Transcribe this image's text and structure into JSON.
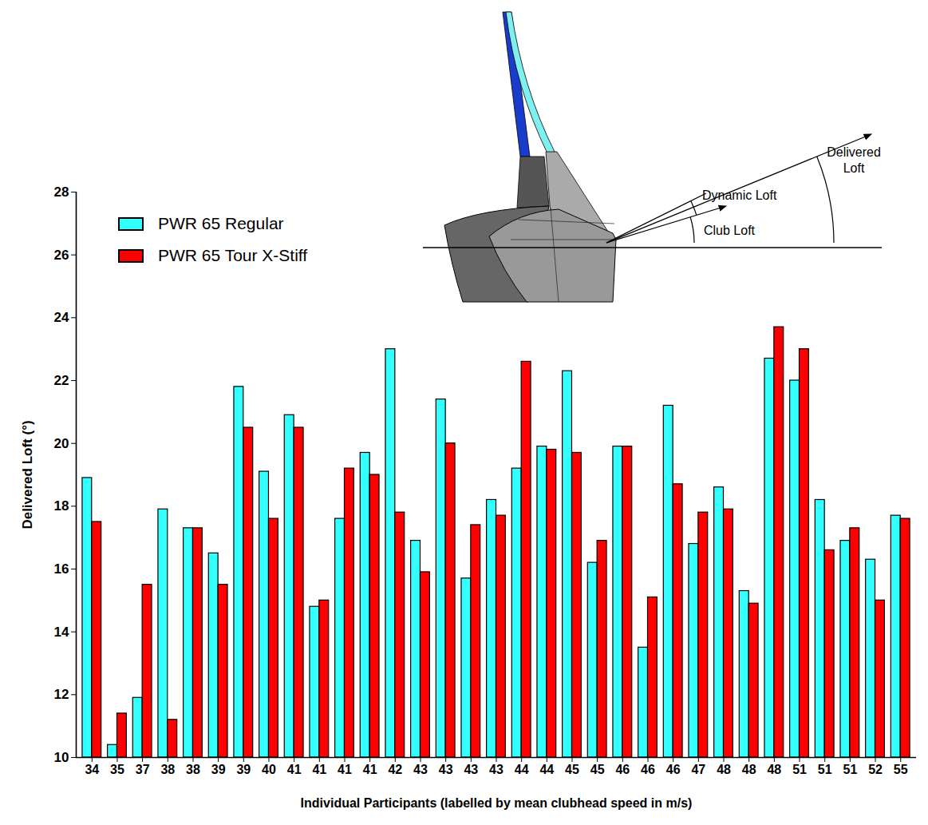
{
  "chart_data": {
    "type": "bar",
    "x_label": "Individual Participants (labelled by mean clubhead speed in m/s)",
    "y_label": "Delivered Loft (°)",
    "annotations": [
      "Delivered Loft",
      "Dynamic Loft",
      "Club Loft"
    ],
    "categories": [
      "34",
      "35",
      "37",
      "38",
      "38",
      "39",
      "39",
      "40",
      "41",
      "41",
      "41",
      "41",
      "42",
      "43",
      "43",
      "43",
      "43",
      "44",
      "44",
      "45",
      "45",
      "46",
      "46",
      "46",
      "47",
      "48",
      "48",
      "48",
      "51",
      "51",
      "51",
      "52",
      "55"
    ],
    "series": [
      {
        "name": "PWR 65 Regular",
        "color": "#33ffff",
        "values": [
          18.9,
          10.4,
          11.9,
          17.9,
          17.3,
          16.5,
          21.8,
          19.1,
          20.9,
          14.8,
          17.6,
          19.7,
          23.0,
          16.9,
          21.4,
          15.7,
          18.2,
          19.2,
          19.9,
          22.3,
          16.2,
          19.9,
          13.5,
          21.2,
          16.8,
          18.6,
          15.3,
          22.7,
          22.0,
          18.2,
          16.9,
          16.3,
          17.7
        ]
      },
      {
        "name": "PWR 65 Tour X-Stiff",
        "color": "#ff0000",
        "values": [
          17.5,
          11.4,
          15.5,
          11.2,
          17.3,
          15.5,
          20.5,
          17.6,
          20.5,
          15.0,
          19.2,
          19.0,
          17.8,
          15.9,
          20.0,
          17.4,
          17.7,
          22.6,
          19.8,
          19.7,
          16.9,
          19.9,
          15.1,
          18.7,
          17.8,
          17.9,
          14.9,
          23.7,
          23.0,
          16.6,
          17.3,
          15.0,
          17.6
        ]
      }
    ],
    "ylim": [
      10,
      28
    ],
    "yticks": [
      10,
      12,
      14,
      16,
      18,
      20,
      22,
      24,
      26,
      28
    ],
    "grid": false,
    "legend": "top-left"
  }
}
